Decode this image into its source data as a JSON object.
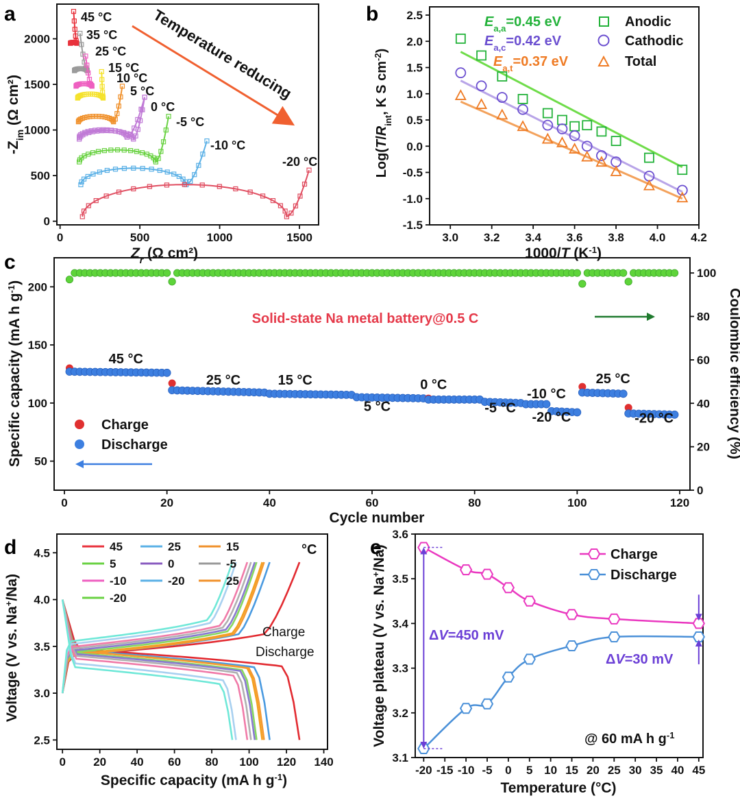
{
  "panels": {
    "a": "a",
    "b": "b",
    "c": "c",
    "d": "d",
    "e": "e"
  },
  "colors": {
    "t45": "#e8323c",
    "t35": "#9a9a9a",
    "t25": "#ee5fc0",
    "t15": "#f5e22a",
    "t10": "#f0902a",
    "t5": "#c07ad6",
    "t0": "#8a5cc0",
    "tm5": "#6ad243",
    "tm10": "#5ab0e6",
    "tm20": "#e04d60",
    "anodic": "#23b23a",
    "cathodic": "#6b4fd0",
    "total": "#ef7b24",
    "fit_anodic": "#6fdc4a",
    "fit_cathodic": "#b8a4e8",
    "fit_total": "#f3a25c",
    "charge_marker": "#e03030",
    "discharge_marker": "#3d7fe0",
    "ce_marker": "#5ed43a",
    "arrow_red": "#f06030",
    "arrow_green": "#1f7a2e",
    "arrow_blue": "#3d7fe0",
    "e_charge": "#ea38c0",
    "e_discharge": "#4a90d8",
    "annot_purple": "#6b3fd6",
    "title_red": "#e53a4a"
  },
  "chart_data": [
    {
      "panel": "a",
      "type": "scatter",
      "xlabel_main": "Z",
      "xlabel_sub": "r",
      "xlabel_unit": " (Ω cm²)",
      "ylabel_main": "-Z",
      "ylabel_sub": "im",
      "ylabel_unit": " (Ω cm²)",
      "xlim": [
        -20,
        1620
      ],
      "ylim": [
        -40,
        2380
      ],
      "xticks": [
        0,
        500,
        1000,
        1500
      ],
      "yticks": [
        0,
        500,
        1000,
        1500,
        2000
      ],
      "annotation": "Temperature reducing",
      "series": [
        {
          "name": "45 °C",
          "color_key": "t45",
          "x0": 65,
          "y0": 1950,
          "r": 20,
          "xtail": 85,
          "ytail": 2300
        },
        {
          "name": "35 °C",
          "color_key": "t35",
          "x0": 90,
          "y0": 1650,
          "r": 40,
          "xtail": 125,
          "ytail": 2060
        },
        {
          "name": "25 °C",
          "color_key": "t25",
          "x0": 100,
          "y0": 1480,
          "r": 50,
          "xtail": 160,
          "ytail": 1810
        },
        {
          "name": "15 °C",
          "color_key": "t15",
          "x0": 110,
          "y0": 1350,
          "r": 80,
          "xtail": 260,
          "ytail": 1640
        },
        {
          "name": "10 °C",
          "color_key": "t10",
          "x0": 115,
          "y0": 1090,
          "r": 110,
          "xtail": 390,
          "ytail": 1480
        },
        {
          "name": "5 °C",
          "color_key": "t5",
          "x0": 120,
          "y0": 920,
          "r": 150,
          "xtail": 530,
          "ytail": 1360
        },
        {
          "name": "0 °C",
          "color_key": "t5",
          "x0": 120,
          "y0": 900,
          "r": 170,
          "xtail": 530,
          "ytail": 1360
        },
        {
          "name": "-5 °C",
          "color_key": "tm5",
          "x0": 120,
          "y0": 650,
          "r": 240,
          "xtail": 680,
          "ytail": 1150
        },
        {
          "name": "-10 °C",
          "color_key": "tm10",
          "x0": 130,
          "y0": 400,
          "r": 330,
          "xtail": 920,
          "ytail": 880
        },
        {
          "name": "-20 °C",
          "color_key": "tm20",
          "x0": 140,
          "y0": 50,
          "r": 640,
          "xtail": 1560,
          "ytail": 560
        }
      ]
    },
    {
      "panel": "b",
      "type": "scatter",
      "xlabel": "1000/T (K⁻¹)",
      "xlabel_parts": [
        "1000/",
        "T",
        " (K",
        "-1",
        ")"
      ],
      "ylabel_parts": [
        "Log(",
        "T",
        "/",
        "R",
        "int",
        ", K S cm",
        "-2",
        ")"
      ],
      "xlim": [
        2.9,
        4.2
      ],
      "ylim": [
        -1.5,
        2.5
      ],
      "xticks": [
        3.0,
        3.2,
        3.4,
        3.6,
        3.8,
        4.0,
        4.2
      ],
      "yticks": [
        -1.5,
        -1.0,
        -0.5,
        0.0,
        0.5,
        1.0,
        1.5,
        2.0,
        2.5
      ],
      "legend": [
        "Anodic",
        "Cathodic",
        "Total"
      ],
      "ea_labels": [
        {
          "E": "E",
          "sub": "a,a",
          "value": "=0.45 eV",
          "color_key": "anodic"
        },
        {
          "E": "E",
          "sub": "a,c",
          "value": "=0.42 eV",
          "color_key": "cathodic"
        },
        {
          "E": "E",
          "sub": "a,t",
          "value": "=0.37 eV",
          "color_key": "total"
        }
      ],
      "series": [
        {
          "name": "Anodic",
          "marker": "square",
          "color_key": "anodic",
          "x": [
            3.05,
            3.15,
            3.25,
            3.35,
            3.47,
            3.54,
            3.6,
            3.66,
            3.73,
            3.8,
            3.96,
            4.12
          ],
          "y": [
            2.05,
            1.73,
            1.33,
            0.9,
            0.63,
            0.5,
            0.38,
            0.4,
            0.28,
            0.1,
            -0.22,
            -0.45
          ],
          "fit": [
            [
              3.05,
              1.8
            ],
            [
              4.12,
              -0.4
            ]
          ]
        },
        {
          "name": "Cathodic",
          "marker": "circle",
          "color_key": "cathodic",
          "x": [
            3.05,
            3.15,
            3.25,
            3.35,
            3.47,
            3.54,
            3.6,
            3.66,
            3.73,
            3.8,
            3.96,
            4.12
          ],
          "y": [
            1.4,
            1.15,
            0.93,
            0.7,
            0.4,
            0.33,
            0.2,
            0.0,
            -0.18,
            -0.3,
            -0.57,
            -0.84
          ],
          "fit": [
            [
              3.05,
              1.25
            ],
            [
              4.12,
              -0.87
            ]
          ]
        },
        {
          "name": "Total",
          "marker": "triangle",
          "color_key": "total",
          "x": [
            3.05,
            3.15,
            3.25,
            3.35,
            3.47,
            3.54,
            3.6,
            3.66,
            3.73,
            3.8,
            3.96,
            4.12
          ],
          "y": [
            0.97,
            0.8,
            0.6,
            0.38,
            0.14,
            0.07,
            -0.05,
            -0.2,
            -0.3,
            -0.48,
            -0.75,
            -0.98
          ],
          "fit": [
            [
              3.05,
              0.85
            ],
            [
              4.12,
              -1.0
            ]
          ]
        }
      ]
    },
    {
      "panel": "c",
      "type": "scatter",
      "xlabel": "Cycle number",
      "ylabel_left_parts": [
        "Specific capacity (mA h g",
        "-1",
        ")"
      ],
      "ylabel_right": "Coulombic efficiency (%)",
      "xlim": [
        -2,
        122
      ],
      "ylim_left": [
        25,
        225
      ],
      "ylim_right": [
        0,
        107
      ],
      "xticks": [
        0,
        20,
        40,
        60,
        80,
        100,
        120
      ],
      "yticks_left": [
        50,
        100,
        150,
        200
      ],
      "yticks_right": [
        0,
        20,
        40,
        60,
        80,
        100
      ],
      "title": "Solid-state Na metal battery@0.5 C",
      "legend": [
        "Charge",
        "Discharge"
      ],
      "temperature_labels": [
        {
          "text": "45 °C",
          "x": 12,
          "y": 134
        },
        {
          "text": "25 °C",
          "x": 31,
          "y": 116
        },
        {
          "text": "15 °C",
          "x": 45,
          "y": 116
        },
        {
          "text": "0 °C",
          "x": 72,
          "y": 112
        },
        {
          "text": "5 °C",
          "x": 61,
          "y": 93
        },
        {
          "text": "-10 °C",
          "x": 94,
          "y": 104
        },
        {
          "text": "-5 °C",
          "x": 85,
          "y": 92
        },
        {
          "text": "-20 °C",
          "x": 95,
          "y": 84
        },
        {
          "text": "25 °C",
          "x": 107,
          "y": 117
        },
        {
          "text": "-20 °C",
          "x": 115,
          "y": 83
        }
      ],
      "segments": [
        {
          "from": 1,
          "to": 20,
          "charge_first": 130,
          "value": 127,
          "end": 126
        },
        {
          "from": 21,
          "to": 39,
          "charge_first": 117,
          "value": 111,
          "end": 109
        },
        {
          "from": 40,
          "to": 56,
          "charge_first": 108,
          "value": 108,
          "end": 107
        },
        {
          "from": 57,
          "to": 70,
          "charge_first": 105,
          "value": 105,
          "end": 104
        },
        {
          "from": 71,
          "to": 81,
          "charge_first": 104,
          "value": 103,
          "end": 103
        },
        {
          "from": 82,
          "to": 89,
          "charge_first": 101,
          "value": 101,
          "end": 100
        },
        {
          "from": 90,
          "to": 94,
          "charge_first": 99,
          "value": 99,
          "end": 99
        },
        {
          "from": 95,
          "to": 100,
          "charge_first": 93,
          "value": 93,
          "end": 92
        },
        {
          "from": 101,
          "to": 109,
          "charge_first": 114,
          "value": 109,
          "end": 108
        },
        {
          "from": 110,
          "to": 119,
          "charge_first": 96,
          "value": 91,
          "end": 90
        }
      ],
      "ce": {
        "value": 100,
        "dips": [
          [
            1,
            97
          ],
          [
            21,
            96
          ],
          [
            101,
            95
          ],
          [
            110,
            96
          ]
        ]
      }
    },
    {
      "panel": "d",
      "type": "line",
      "xlabel_parts": [
        "Specific capacity (mA h g",
        "-1",
        ")"
      ],
      "ylabel_parts": [
        "Voltage (V vs. Na",
        "+",
        "/Na)"
      ],
      "xlim": [
        -3,
        142
      ],
      "ylim": [
        2.4,
        4.7
      ],
      "xticks": [
        0,
        20,
        40,
        60,
        80,
        100,
        120,
        140
      ],
      "yticks": [
        2.5,
        3.0,
        3.5,
        4.0,
        4.5
      ],
      "unit": "°C",
      "labels": {
        "charge": "Charge",
        "discharge": "Discharge"
      },
      "legend": [
        {
          "name": "45",
          "color_key": "t45"
        },
        {
          "name": "25",
          "color_key": "tm10"
        },
        {
          "name": "15",
          "color_key": "t10"
        },
        {
          "name": "5",
          "color_key": "tm5"
        },
        {
          "name": "0",
          "color_key": "t0"
        },
        {
          "name": "-5",
          "color_key": "t35"
        },
        {
          "name": "-10",
          "color_key": "t25"
        },
        {
          "name": "-20",
          "color_key": "tm10"
        },
        {
          "name": "25",
          "color_key": "t10"
        },
        {
          "name": "-20",
          "color_key": "tm5"
        }
      ],
      "curves": [
        {
          "color": "#e22a30",
          "cap": 127,
          "vc": 3.4,
          "vd": 3.32
        },
        {
          "color": "#4a9ae0",
          "cap": 111,
          "vc": 3.4,
          "vd": 3.31
        },
        {
          "color": "#f3a020",
          "cap": 107,
          "vc": 3.41,
          "vd": 3.3
        },
        {
          "color": "#f59a30",
          "cap": 108,
          "vc": 3.4,
          "vd": 3.3
        },
        {
          "color": "#88d860",
          "cap": 104,
          "vc": 3.43,
          "vd": 3.28
        },
        {
          "color": "#8a7ad0",
          "cap": 103,
          "vc": 3.45,
          "vd": 3.27
        },
        {
          "color": "#b0b0b0",
          "cap": 101,
          "vc": 3.47,
          "vd": 3.25
        },
        {
          "color": "#f07aa8",
          "cap": 99,
          "vc": 3.49,
          "vd": 3.22
        },
        {
          "color": "#a8d0f0",
          "cap": 93,
          "vc": 3.52,
          "vd": 3.17
        },
        {
          "color": "#70e8d8",
          "cap": 91,
          "vc": 3.55,
          "vd": 3.13
        }
      ]
    },
    {
      "panel": "e",
      "type": "line",
      "xlabel": "Temperature (°C)",
      "ylabel_parts": [
        "Voltage plateau (V vs. Na",
        "+",
        "/Na)"
      ],
      "xlim": [
        -22,
        46
      ],
      "ylim": [
        3.1,
        3.6
      ],
      "xticks": [
        -20,
        -15,
        -10,
        -5,
        0,
        5,
        10,
        15,
        20,
        25,
        30,
        35,
        40,
        45
      ],
      "yticks": [
        3.1,
        3.2,
        3.3,
        3.4,
        3.5,
        3.6
      ],
      "legend": [
        "Charge",
        "Discharge"
      ],
      "annotation_rate_parts": [
        "@ 60 mA h g",
        "-1"
      ],
      "delta_left": {
        "dv": "Δ",
        "v": "V",
        "value": "=450 mV"
      },
      "delta_right": {
        "dv": "Δ",
        "v": "V",
        "value": "=30 mV"
      },
      "series": [
        {
          "name": "Charge",
          "color_key": "e_charge",
          "x": [
            -20,
            -10,
            -5,
            0,
            5,
            15,
            25,
            45
          ],
          "y": [
            3.57,
            3.52,
            3.51,
            3.48,
            3.45,
            3.42,
            3.41,
            3.4
          ]
        },
        {
          "name": "Discharge",
          "color_key": "e_discharge",
          "x": [
            -20,
            -10,
            -5,
            0,
            5,
            15,
            25,
            45
          ],
          "y": [
            3.12,
            3.21,
            3.22,
            3.28,
            3.32,
            3.35,
            3.37,
            3.37
          ]
        }
      ]
    }
  ]
}
